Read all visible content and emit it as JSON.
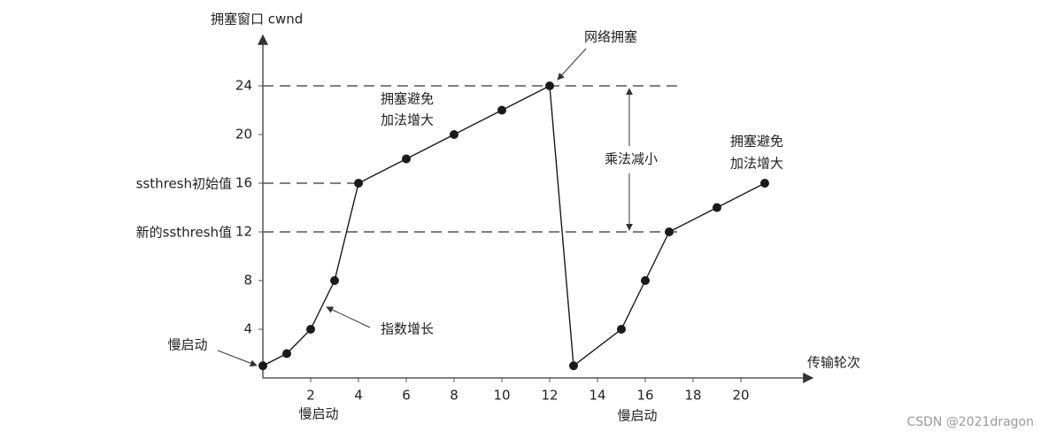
{
  "chart_data": {
    "type": "line",
    "y_label": "拥塞窗口 cwnd",
    "x_label": "传输轮次",
    "x": [
      0,
      1,
      2,
      3,
      4,
      6,
      8,
      10,
      12,
      13,
      15,
      16,
      17,
      19,
      21
    ],
    "series": [
      {
        "color": "#1a1a1a",
        "values": [
          1,
          2,
          4,
          8,
          16,
          18,
          20,
          22,
          24,
          1,
          4,
          8,
          12,
          14,
          16
        ]
      }
    ],
    "xlim": [
      0,
      23
    ],
    "ylim": [
      0,
      28
    ],
    "xticks": [
      2,
      4,
      6,
      8,
      10,
      12,
      14,
      16,
      18,
      20
    ],
    "yticks": [
      4,
      8,
      12,
      16,
      20,
      24
    ],
    "hlines": [
      24,
      16,
      12
    ],
    "annotations": {
      "congestion": "网络拥塞",
      "avoid_1_a": "拥塞避免",
      "avoid_1_b": "加法增大",
      "multiply": "乘法减小",
      "avoid_2_a": "拥塞避免",
      "avoid_2_b": "加法增大",
      "ssthresh_init": "ssthresh初始值",
      "ssthresh_new": "新的ssthresh值",
      "slow_start_left": "慢启动",
      "exponential": "指数增长",
      "slow_start_1": "慢启动",
      "slow_start_2": "慢启动",
      "watermark": "CSDN @2021dragon"
    }
  }
}
